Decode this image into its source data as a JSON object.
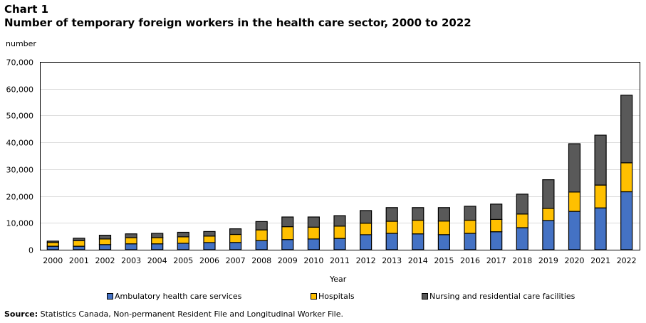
{
  "header": {
    "chart_label": "Chart 1",
    "title": "Number of temporary foreign workers in the health care sector, 2000 to 2022"
  },
  "source": {
    "label": "Source:",
    "text": " Statistics Canada, Non-permanent Resident File and Longitudinal Worker File."
  },
  "chart_data": {
    "type": "bar",
    "stacked": true,
    "title": "Number of temporary foreign workers in the health care sector, 2000 to 2022",
    "xlabel": "Year",
    "ylabel": "number",
    "ylim": [
      0,
      70000
    ],
    "yticks": [
      0,
      10000,
      20000,
      30000,
      40000,
      50000,
      60000,
      70000
    ],
    "ytick_labels": [
      "0",
      "10,000",
      "20,000",
      "30,000",
      "40,000",
      "50,000",
      "60,000",
      "70,000"
    ],
    "grid": true,
    "legend_position": "bottom",
    "categories": [
      "2000",
      "2001",
      "2002",
      "2003",
      "2004",
      "2005",
      "2006",
      "2007",
      "2008",
      "2009",
      "2010",
      "2011",
      "2012",
      "2013",
      "2014",
      "2015",
      "2016",
      "2017",
      "2018",
      "2019",
      "2020",
      "2021",
      "2022"
    ],
    "series": [
      {
        "name": "Ambulatory health care services",
        "color": "#4472C4",
        "values": [
          1300,
          1300,
          1900,
          2200,
          2200,
          2400,
          2700,
          2700,
          3400,
          3800,
          4000,
          4200,
          5600,
          6100,
          5900,
          5600,
          6100,
          6700,
          8200,
          10900,
          14300,
          15600,
          21600
        ]
      },
      {
        "name": "Hospitals",
        "color": "#FFC000",
        "values": [
          1400,
          2100,
          2100,
          2300,
          2300,
          2400,
          2400,
          3000,
          4000,
          4800,
          4400,
          4600,
          4300,
          4500,
          5100,
          5100,
          4900,
          4600,
          5100,
          4500,
          7200,
          8500,
          10800
        ]
      },
      {
        "name": "Nursing and residential care facilities",
        "color": "#595959",
        "values": [
          500,
          900,
          1400,
          1400,
          1600,
          1700,
          1700,
          2100,
          3100,
          3600,
          3800,
          3900,
          4700,
          5100,
          4700,
          5000,
          5200,
          5700,
          7400,
          10700,
          18000,
          18600,
          25200
        ]
      }
    ]
  }
}
